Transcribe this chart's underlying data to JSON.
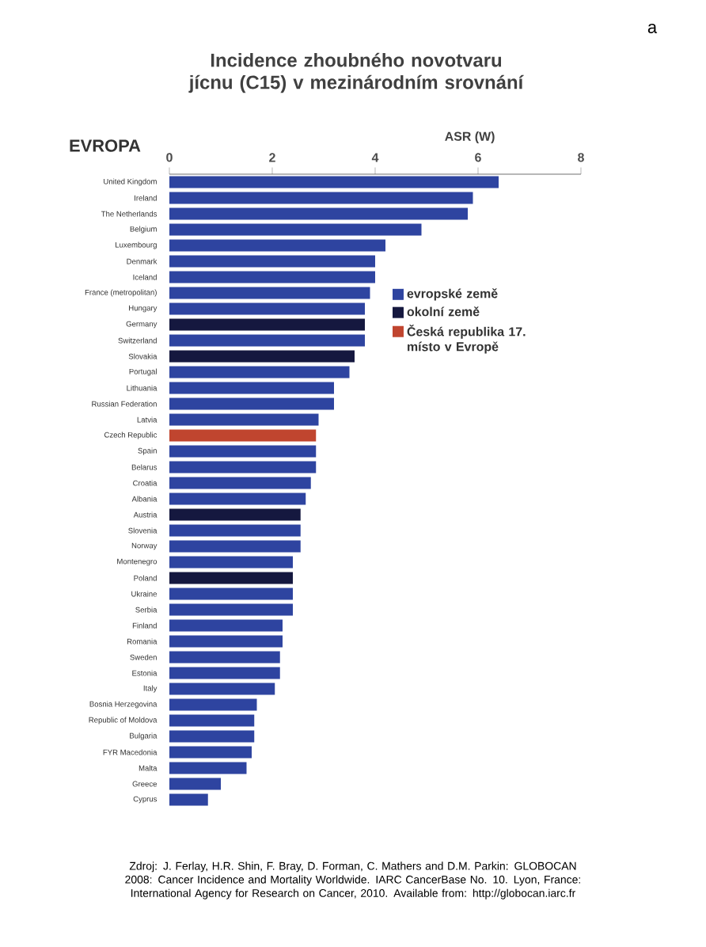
{
  "chart_data": {
    "type": "bar",
    "orientation": "horizontal",
    "title": "Incidence zhoubného novotvaru jícnu (C15) v mezinárodním srovnání",
    "subtitle": "EVROPA",
    "xlabel": "ASR (W)",
    "categories": [
      "United Kingdom",
      "Ireland",
      "The Netherlands",
      "Belgium",
      "Luxembourg",
      "Denmark",
      "Iceland",
      "France (metropolitan)",
      "Hungary",
      "Germany",
      "Switzerland",
      "Slovakia",
      "Portugal",
      "Lithuania",
      "Russian Federation",
      "Latvia",
      "Czech Republic",
      "Spain",
      "Belarus",
      "Croatia",
      "Albania",
      "Austria",
      "Slovenia",
      "Norway",
      "Montenegro",
      "Poland",
      "Ukraine",
      "Serbia",
      "Finland",
      "Romania",
      "Sweden",
      "Estonia",
      "Italy",
      "Bosnia Herzegovina",
      "Republic of Moldova",
      "Bulgaria",
      "FYR Macedonia",
      "Malta",
      "Greece",
      "Cyprus"
    ],
    "series": [
      {
        "name": "evropské země",
        "color": "#2e44a0",
        "values": [
          6.4,
          5.9,
          5.8,
          4.9,
          4.2,
          4.0,
          4.0,
          3.9,
          3.8,
          null,
          3.8,
          null,
          3.5,
          3.2,
          3.2,
          2.9,
          null,
          2.85,
          2.85,
          2.75,
          2.65,
          null,
          2.55,
          2.55,
          2.4,
          null,
          2.4,
          2.4,
          2.2,
          2.2,
          2.15,
          2.15,
          2.05,
          1.7,
          1.65,
          1.65,
          1.6,
          1.5,
          1.0,
          0.75
        ]
      },
      {
        "name": "okolní země",
        "color": "#15183f",
        "values": [
          null,
          null,
          null,
          null,
          null,
          null,
          null,
          null,
          null,
          3.8,
          null,
          3.6,
          null,
          null,
          null,
          null,
          null,
          null,
          null,
          null,
          null,
          2.55,
          null,
          null,
          null,
          2.4,
          null,
          null,
          null,
          null,
          null,
          null,
          null,
          null,
          null,
          null,
          null,
          null,
          null,
          null
        ]
      },
      {
        "name": "Česká republika 17. místo v Evropě",
        "color": "#c0452f",
        "values": [
          null,
          null,
          null,
          null,
          null,
          null,
          null,
          null,
          null,
          null,
          null,
          null,
          null,
          null,
          null,
          null,
          2.85,
          null,
          null,
          null,
          null,
          null,
          null,
          null,
          null,
          null,
          null,
          null,
          null,
          null,
          null,
          null,
          null,
          null,
          null,
          null,
          null,
          null,
          null,
          null
        ]
      }
    ],
    "xlim": [
      0,
      8
    ],
    "xticks": [
      0,
      2,
      4,
      6,
      8
    ],
    "grid": false,
    "legend": "right",
    "annotations": [
      "a",
      "Zdroj: J. Ferlay, H.R. Shin, F. Bray, D. Forman, C. Mathers and D.M. Parkin: GLOBOCAN 2008: Cancer Incidence and Mortality Worldwide. IARC CancerBase No. 10. Lyon, France: International Agency for Research on Cancer, 2010. Available from: http://globocan.iarc.fr"
    ]
  }
}
